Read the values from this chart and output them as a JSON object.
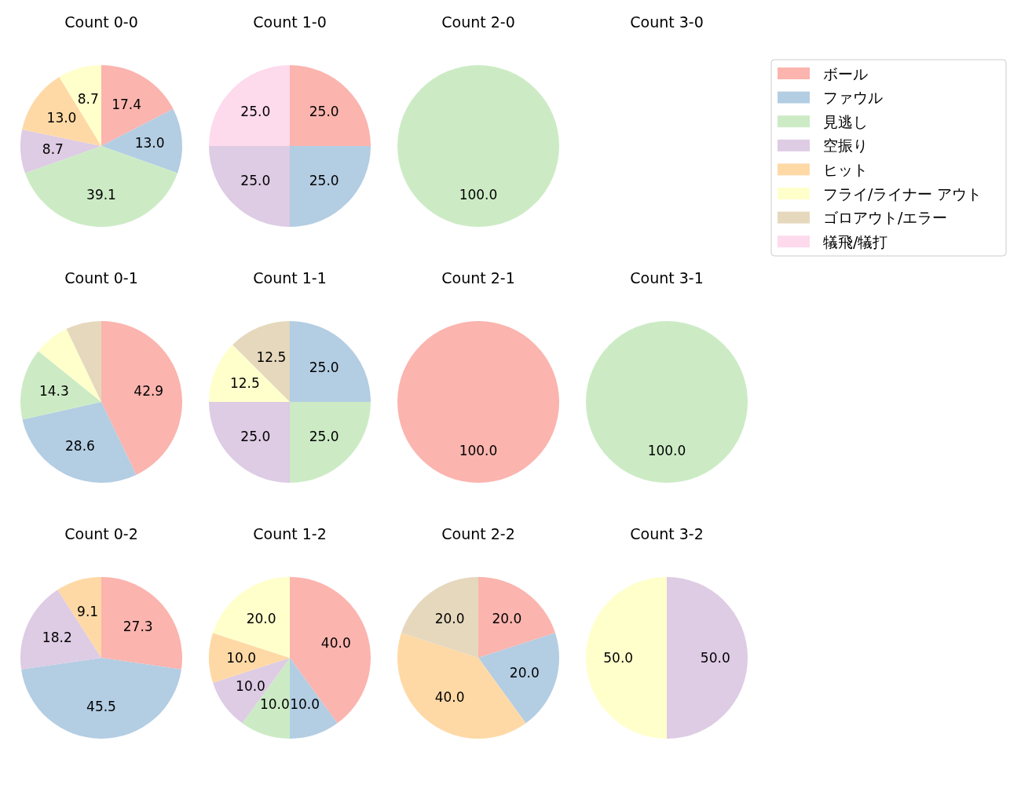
{
  "chart_data": [
    {
      "type": "pie",
      "title": "Count 0-0",
      "categories": [
        "ボール",
        "ファウル",
        "見逃し",
        "空振り",
        "ヒット",
        "フライ/ライナー アウト",
        "ゴロアウト/エラー",
        "犠飛/犠打"
      ],
      "values": [
        17.4,
        13.0,
        39.1,
        8.7,
        13.0,
        8.7,
        0,
        0
      ],
      "colors": [
        "#fbb4ae",
        "#b3cde3",
        "#ccebc5",
        "#decbe4",
        "#fed9a6",
        "#ffffcc",
        "#e5d8bd",
        "#fddaec"
      ],
      "value_labels": [
        "17.4",
        "13.0",
        "39.1",
        "8.7",
        "13.0",
        "8.7",
        null,
        null
      ],
      "legend": "right"
    },
    {
      "type": "pie",
      "title": "Count 1-0",
      "categories": [
        null,
        null,
        null,
        null
      ],
      "values": [
        25,
        25,
        25,
        25
      ],
      "colors": [
        "#fbb4ae",
        "#b3cde3",
        "#decbe4",
        "#fddaec"
      ],
      "value_labels": [
        "25.0",
        "25.0",
        "25.0",
        "25.0"
      ]
    },
    {
      "type": "pie",
      "title": "Count 2-0",
      "categories": [
        null
      ],
      "values": [
        100
      ],
      "colors": [
        "#ccebc5"
      ],
      "value_labels": [
        "100.0"
      ]
    },
    {
      "type": "other",
      "title": "Count 3-0"
    },
    {
      "type": "pie",
      "title": "Count 0-1",
      "categories": [
        null,
        null,
        null,
        null,
        null
      ],
      "values": [
        42.9,
        28.6,
        14.3,
        7.1,
        7.1
      ],
      "colors": [
        "#fbb4ae",
        "#b3cde3",
        "#ccebc5",
        "#ffffcc",
        "#e5d8bd"
      ],
      "value_labels": [
        "42.9",
        "28.6",
        "14.3",
        null,
        null
      ]
    },
    {
      "type": "pie",
      "title": "Count 1-1",
      "categories": [
        null,
        null,
        null,
        null,
        null
      ],
      "values": [
        25,
        25,
        25,
        12.5,
        12.5
      ],
      "colors": [
        "#b3cde3",
        "#ccebc5",
        "#decbe4",
        "#ffffcc",
        "#e5d8bd"
      ],
      "value_labels": [
        "25.0",
        "25.0",
        "25.0",
        "12.5",
        "12.5"
      ]
    },
    {
      "type": "pie",
      "title": "Count 2-1",
      "categories": [
        null
      ],
      "values": [
        100
      ],
      "colors": [
        "#fbb4ae"
      ],
      "value_labels": [
        "100.0"
      ]
    },
    {
      "type": "pie",
      "title": "Count 3-1",
      "categories": [
        null
      ],
      "values": [
        100
      ],
      "colors": [
        "#ccebc5"
      ],
      "value_labels": [
        "100.0"
      ]
    },
    {
      "type": "pie",
      "title": "Count 0-2",
      "categories": [
        null,
        null,
        null,
        null
      ],
      "values": [
        27.3,
        45.5,
        18.2,
        9.1
      ],
      "colors": [
        "#fbb4ae",
        "#b3cde3",
        "#decbe4",
        "#fed9a6"
      ],
      "value_labels": [
        "27.3",
        "45.5",
        "18.2",
        "9.1"
      ]
    },
    {
      "type": "pie",
      "title": "Count 1-2",
      "categories": [
        null,
        null,
        null,
        null,
        null,
        null
      ],
      "values": [
        40,
        10,
        10,
        10,
        10,
        20
      ],
      "colors": [
        "#fbb4ae",
        "#b3cde3",
        "#ccebc5",
        "#decbe4",
        "#fed9a6",
        "#ffffcc"
      ],
      "value_labels": [
        "40.0",
        "10.0",
        "10.0",
        "10.0",
        "10.0",
        "20.0"
      ]
    },
    {
      "type": "pie",
      "title": "Count 2-2",
      "categories": [
        null,
        null,
        null,
        null
      ],
      "values": [
        20,
        20,
        40,
        20
      ],
      "colors": [
        "#fbb4ae",
        "#b3cde3",
        "#fed9a6",
        "#e5d8bd"
      ],
      "value_labels": [
        "20.0",
        "20.0",
        "40.0",
        "20.0"
      ]
    },
    {
      "type": "pie",
      "title": "Count 3-2",
      "categories": [
        null,
        null
      ],
      "values": [
        50,
        50
      ],
      "colors": [
        "#decbe4",
        "#ffffcc"
      ],
      "value_labels": [
        "50.0",
        "50.0"
      ]
    }
  ]
}
